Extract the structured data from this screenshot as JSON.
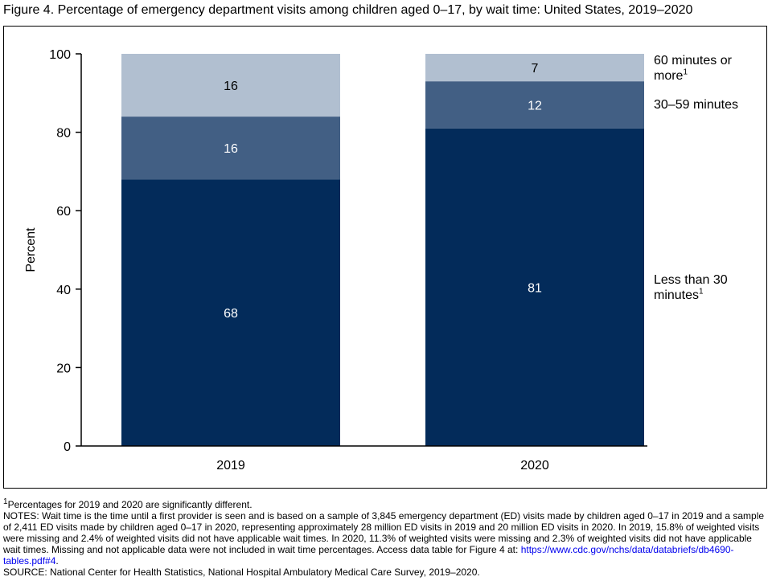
{
  "title": "Figure 4. Percentage of emergency department visits among children aged 0–17, by wait time: United States, 2019–2020",
  "chart_data": {
    "type": "bar",
    "stacked": true,
    "categories": [
      "2019",
      "2020"
    ],
    "series": [
      {
        "name": "Less than 30 minutes",
        "footnote": "1",
        "values": [
          68,
          81
        ],
        "color": "#032b5a"
      },
      {
        "name": "30–59 minutes",
        "footnote": "",
        "values": [
          16,
          12
        ],
        "color": "#425f84"
      },
      {
        "name": "60 minutes or more",
        "footnote": "1",
        "values": [
          16,
          7
        ],
        "color": "#b1bfd0"
      }
    ],
    "data_label_colors": [
      "#ffffff",
      "#ffffff",
      "#000000"
    ],
    "ylabel": "Percent",
    "ylim": [
      0,
      100
    ],
    "yticks": [
      0,
      20,
      40,
      60,
      80,
      100
    ],
    "grid": false,
    "legend_placement": "right, labels aligned to 2020 bar segments"
  },
  "legend": {
    "less_than_30_a": "Less than 30",
    "less_than_30_b": "minutes",
    "range_30_59": "30–59 minutes",
    "over_60_a": "60 minutes or",
    "over_60_b": "more",
    "footnote_mark": "1"
  },
  "notes": {
    "footnote_mark": "1",
    "footnote": "Percentages for 2019 and 2020 are significantly different.",
    "notes_text": "NOTES: Wait time is the time until a first provider is seen and is based on a sample of 3,845 emergency department (ED) visits made by children aged 0–17 in 2019 and a sample of 2,411 ED visits made by children aged 0–17 in 2020, representing approximately 28 million ED visits in 2019 and 20 million ED visits in 2020. In 2019, 15.8% of weighted visits were missing and 2.4% of weighted visits did not have applicable wait times. In 2020, 11.3% of weighted visits were missing and 2.3% of weighted visits did not have applicable wait times. Missing and not applicable data were not included in wait time percentages. Access data table for Figure 4 at: ",
    "link_text": "https://www.cdc.gov/nchs/data/databriefs/db4690-tables.pdf#4",
    "after_link": ".",
    "source": "SOURCE: National Center for Health Statistics, National Hospital Ambulatory Medical Care Survey, 2019–2020."
  }
}
